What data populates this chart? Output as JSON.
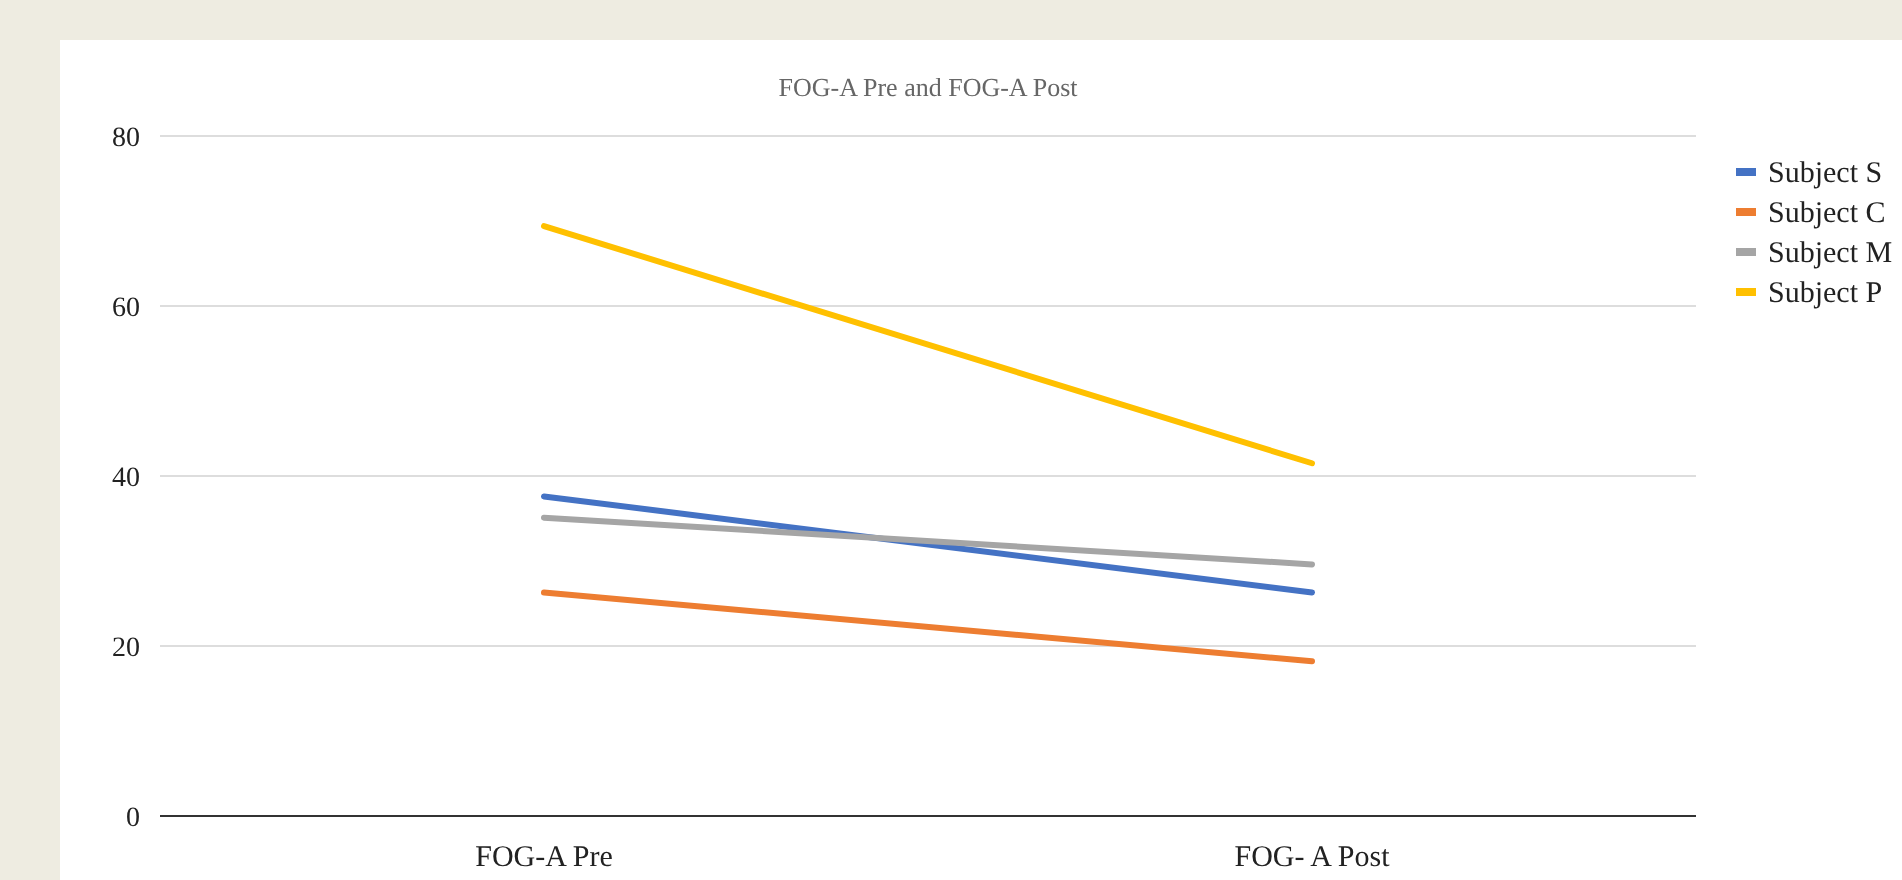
{
  "chart_data": {
    "type": "line",
    "title": "FOG-A Pre and FOG-A Post",
    "categories": [
      "FOG-A Pre",
      "FOG- A Post"
    ],
    "series": [
      {
        "name": "Subject S",
        "color": "#4472c4",
        "values": [
          37.6,
          26.3
        ]
      },
      {
        "name": "Subject C",
        "color": "#ed7d31",
        "values": [
          26.3,
          18.2
        ]
      },
      {
        "name": "Subject M",
        "color": "#a5a5a5",
        "values": [
          35.1,
          29.6
        ]
      },
      {
        "name": "Subject P",
        "color": "#ffc000",
        "values": [
          69.4,
          41.5
        ]
      }
    ],
    "ylim": [
      0,
      80
    ],
    "yticks": [
      0,
      20,
      40,
      60,
      80
    ],
    "grid": "y",
    "legend": "right",
    "marker": "none",
    "line_style": "solid"
  }
}
